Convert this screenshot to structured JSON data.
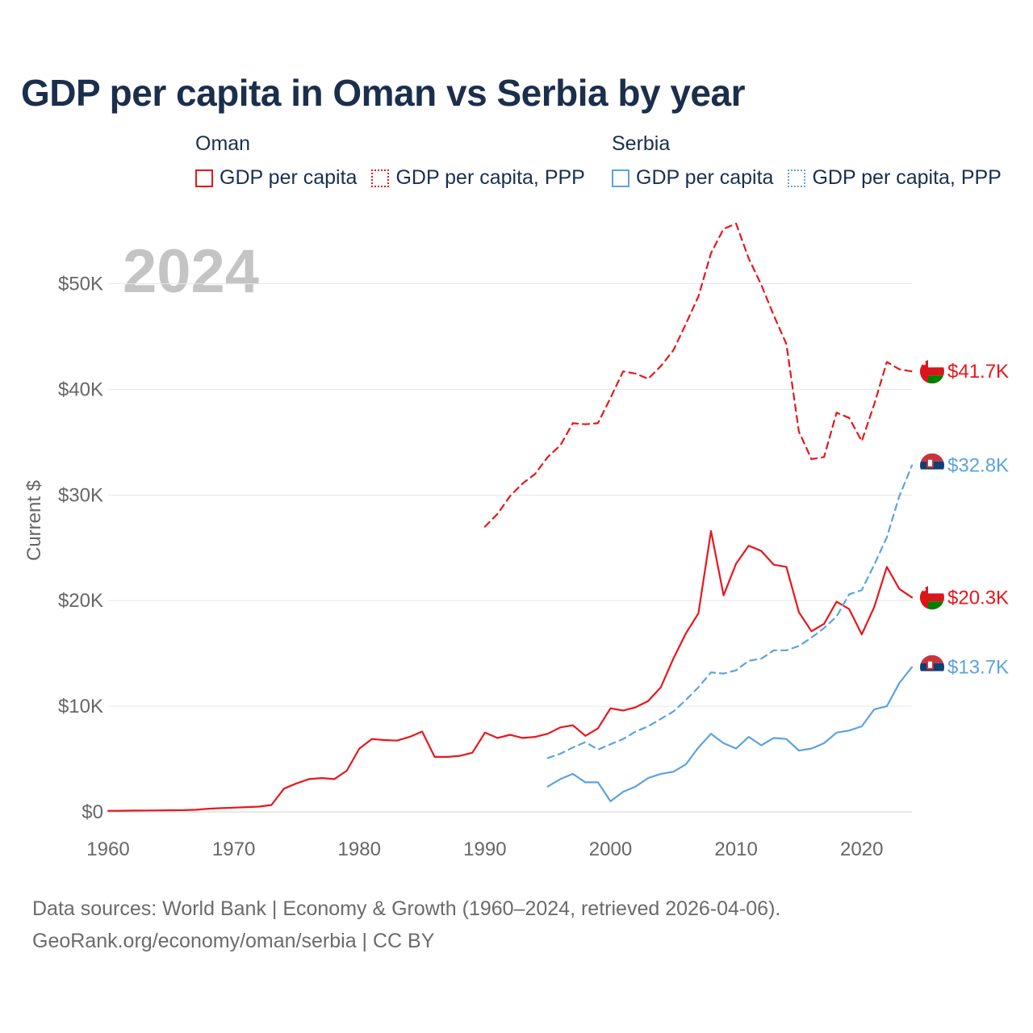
{
  "title": "GDP per capita in Oman vs Serbia by year",
  "legend": {
    "groups": [
      {
        "name": "Oman",
        "items": [
          "GDP per capita",
          "GDP per capita, PPP"
        ]
      },
      {
        "name": "Serbia",
        "items": [
          "GDP per capita",
          "GDP per capita, PPP"
        ]
      }
    ]
  },
  "colors": {
    "oman": "#e8161b",
    "serbia": "#5ba3e0"
  },
  "footer": {
    "line1": "Data sources: World Bank | Economy & Growth (1960–2024, retrieved 2026-04-06).",
    "line2": "GeoRank.org/economy/oman/serbia | CC BY"
  },
  "chart_data": {
    "type": "line",
    "title": "GDP per capita in Oman vs Serbia by year",
    "year_label": "2024",
    "ylabel": "Current $",
    "xlabel": "",
    "xlim": [
      1960,
      2024
    ],
    "ylim": [
      0,
      57000
    ],
    "x_ticks": [
      1960,
      1970,
      1980,
      1990,
      2000,
      2010,
      2020
    ],
    "y_ticks": [
      {
        "value": 0,
        "label": "$0"
      },
      {
        "value": 10000,
        "label": "$10K"
      },
      {
        "value": 20000,
        "label": "$20K"
      },
      {
        "value": 30000,
        "label": "$30K"
      },
      {
        "value": 40000,
        "label": "$40K"
      },
      {
        "value": 50000,
        "label": "$50K"
      }
    ],
    "grid": true,
    "series": [
      {
        "name": "Oman GDP per capita",
        "country": "oman",
        "style": "solid",
        "end_label": "$20.3K",
        "x": [
          1960,
          1961,
          1962,
          1963,
          1964,
          1965,
          1966,
          1967,
          1968,
          1969,
          1970,
          1971,
          1972,
          1973,
          1974,
          1975,
          1976,
          1977,
          1978,
          1979,
          1980,
          1981,
          1982,
          1983,
          1984,
          1985,
          1986,
          1987,
          1988,
          1989,
          1990,
          1991,
          1992,
          1993,
          1994,
          1995,
          1996,
          1997,
          1998,
          1999,
          2000,
          2001,
          2002,
          2003,
          2004,
          2005,
          2006,
          2007,
          2008,
          2009,
          2010,
          2011,
          2012,
          2013,
          2014,
          2015,
          2016,
          2017,
          2018,
          2019,
          2020,
          2021,
          2022,
          2023,
          2024
        ],
        "values": [
          100,
          110,
          120,
          130,
          140,
          150,
          160,
          200,
          300,
          350,
          400,
          450,
          500,
          650,
          2200,
          2700,
          3100,
          3200,
          3100,
          3900,
          6000,
          6900,
          6800,
          6750,
          7100,
          7600,
          5200,
          5200,
          5300,
          5600,
          7500,
          7000,
          7300,
          7000,
          7100,
          7400,
          8000,
          8200,
          7200,
          7900,
          9800,
          9600,
          9900,
          10500,
          11800,
          14500,
          16900,
          18800,
          26600,
          20500,
          23500,
          25200,
          24700,
          23400,
          23200,
          18900,
          17100,
          17800,
          19900,
          19200,
          16800,
          19400,
          23200,
          21100,
          20300
        ]
      },
      {
        "name": "Oman GDP per capita, PPP",
        "country": "oman",
        "style": "dashed",
        "end_label": "$41.7K",
        "x": [
          1990,
          1991,
          1992,
          1993,
          1994,
          1995,
          1996,
          1997,
          1998,
          1999,
          2000,
          2001,
          2002,
          2003,
          2004,
          2005,
          2006,
          2007,
          2008,
          2009,
          2010,
          2011,
          2012,
          2013,
          2014,
          2015,
          2016,
          2017,
          2018,
          2019,
          2020,
          2021,
          2022,
          2023,
          2024
        ],
        "values": [
          27000,
          28200,
          29900,
          31100,
          32000,
          33600,
          34700,
          36800,
          36700,
          36800,
          39200,
          41700,
          41500,
          41000,
          42200,
          43700,
          46200,
          48800,
          52900,
          55200,
          55700,
          52400,
          49900,
          47000,
          44300,
          36000,
          33400,
          33600,
          37800,
          37300,
          35100,
          38600,
          42600,
          41900,
          41700
        ]
      },
      {
        "name": "Serbia GDP per capita",
        "country": "serbia",
        "style": "solid",
        "end_label": "$13.7K",
        "x": [
          1995,
          1996,
          1997,
          1998,
          1999,
          2000,
          2001,
          2002,
          2003,
          2004,
          2005,
          2006,
          2007,
          2008,
          2009,
          2010,
          2011,
          2012,
          2013,
          2014,
          2015,
          2016,
          2017,
          2018,
          2019,
          2020,
          2021,
          2022,
          2023,
          2024
        ],
        "values": [
          2400,
          3100,
          3600,
          2800,
          2800,
          1000,
          1900,
          2400,
          3200,
          3600,
          3800,
          4500,
          6100,
          7400,
          6500,
          6000,
          7100,
          6300,
          7000,
          6900,
          5800,
          6000,
          6500,
          7500,
          7700,
          8100,
          9700,
          10000,
          12200,
          13700
        ]
      },
      {
        "name": "Serbia GDP per capita, PPP",
        "country": "serbia",
        "style": "dashed",
        "end_label": "$32.8K",
        "x": [
          1995,
          1996,
          1997,
          1998,
          1999,
          2000,
          2001,
          2002,
          2003,
          2004,
          2005,
          2006,
          2007,
          2008,
          2009,
          2010,
          2011,
          2012,
          2013,
          2014,
          2015,
          2016,
          2017,
          2018,
          2019,
          2020,
          2021,
          2022,
          2023,
          2024
        ],
        "values": [
          5100,
          5500,
          6100,
          6600,
          5900,
          6400,
          6900,
          7600,
          8100,
          8800,
          9500,
          10600,
          11800,
          13200,
          13100,
          13400,
          14300,
          14500,
          15300,
          15300,
          15700,
          16500,
          17400,
          18500,
          20600,
          21000,
          23400,
          26000,
          29900,
          32800
        ]
      }
    ]
  }
}
